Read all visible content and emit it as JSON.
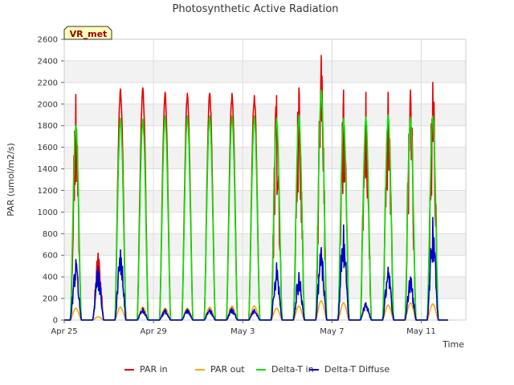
{
  "chart_data": {
    "type": "line",
    "title": "Photosynthetic Active Radiation",
    "xlabel": "Time",
    "ylabel": "PAR (umol/m2/s)",
    "site_label": "VR_met",
    "x_domain_days": [
      0,
      18
    ],
    "ylim": [
      0,
      2600
    ],
    "y_ticks": [
      0,
      200,
      400,
      600,
      800,
      1000,
      1200,
      1400,
      1600,
      1800,
      2000,
      2200,
      2400,
      2600
    ],
    "x_ticks": [
      {
        "day": 0,
        "label": "Apr 25"
      },
      {
        "day": 4,
        "label": "Apr 29"
      },
      {
        "day": 8,
        "label": "May 3"
      },
      {
        "day": 12,
        "label": "May 7"
      },
      {
        "day": 16,
        "label": "May 11"
      }
    ],
    "legend": [
      "PAR in",
      "PAR out",
      "Delta-T in",
      "Delta-T Diffuse"
    ],
    "series": [
      {
        "name": "PAR in",
        "color": "#e60000",
        "daily_peak": [
          2090,
          620,
          2140,
          2150,
          2110,
          2100,
          2100,
          2100,
          2080,
          2080,
          2150,
          2450,
          2130,
          2110,
          2110,
          2130,
          2200
        ]
      },
      {
        "name": "PAR out",
        "color": "#ffa500",
        "daily_peak": [
          110,
          30,
          120,
          120,
          110,
          110,
          120,
          130,
          130,
          110,
          130,
          180,
          160,
          140,
          140,
          160,
          150
        ]
      },
      {
        "name": "Delta-T in",
        "color": "#00e600",
        "daily_peak": [
          1800,
          380,
          1870,
          1860,
          1890,
          1890,
          1890,
          1890,
          1890,
          1870,
          1900,
          2130,
          1870,
          1880,
          1900,
          1880,
          1890
        ]
      },
      {
        "name": "Delta-T Diffuse",
        "color": "#0000cc",
        "daily_peak": [
          560,
          500,
          650,
          110,
          100,
          100,
          100,
          110,
          100,
          530,
          440,
          670,
          880,
          160,
          490,
          400,
          950
        ]
      }
    ]
  }
}
